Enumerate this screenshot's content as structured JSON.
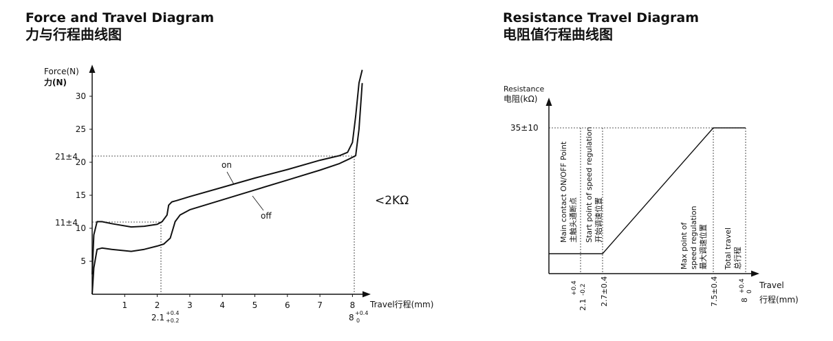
{
  "left": {
    "title_en": "Force and  Travel Diagram",
    "title_cn": "力与行程曲线图",
    "y_label_en": "Force(N)",
    "y_label_cn": "力(N)",
    "x_label": "Travel行程(mm)",
    "y_ticks": [
      "5",
      "10",
      "15",
      "20",
      "25",
      "30"
    ],
    "x_ticks": [
      "1",
      "2",
      "3",
      "4",
      "5",
      "6",
      "7",
      "8"
    ],
    "ref_21": "21±4",
    "ref_11": "11±4",
    "x_21_base": "2.1",
    "x_21_sup": "+0.4",
    "x_21_sub": "+0.2",
    "x_8_base": "8",
    "x_8_sup": "+0.4",
    "x_8_sub": "0",
    "on_label": "on",
    "off_label": "off",
    "resistance_note": "<2KΩ"
  },
  "right": {
    "title_en": "Resistance Travel Diagram",
    "title_cn": "电阻值行程曲线图",
    "y_label_en": "Resistance",
    "y_label_cn": "电阻(kΩ)",
    "y_ref": "35±10",
    "x_label_en": "Travel",
    "x_label_cn": "行程(mm)",
    "annot_main_en": "Main contact ON/OFF Point",
    "annot_main_cn": "主触头通断点",
    "annot_start_en": "Start point of speed regulation",
    "annot_start_cn": "开始调速位置",
    "annot_max_en1": "Max point of",
    "annot_max_en2": "speed regulation",
    "annot_max_cn": "最大调速位置",
    "annot_total_en": "Total travel",
    "annot_total_cn": "总行程",
    "xt1_base": "2.1",
    "xt1_sup": "+0.4",
    "xt1_sub": "-0.2",
    "xt2": "2.7±0.4",
    "xt3": "7.5±0.4",
    "xt4_base": "8",
    "xt4_sup": "+0.4",
    "xt4_sub": "0"
  },
  "chart_data": [
    {
      "type": "line",
      "title": "Force and  Travel Diagram",
      "xlabel": "Travel行程(mm)",
      "ylabel": "Force(N)",
      "xlim": [
        0,
        8.4
      ],
      "ylim": [
        0,
        35
      ],
      "series": [
        {
          "name": "on",
          "x": [
            0,
            0.05,
            0.15,
            0.3,
            0.6,
            1.2,
            1.6,
            2.0,
            2.15,
            2.3,
            2.35,
            2.45,
            2.6,
            3.0,
            4.0,
            5.0,
            6.0,
            7.0,
            7.6,
            7.85,
            8.0,
            8.1,
            8.2,
            8.3
          ],
          "y": [
            3,
            9,
            11,
            11,
            10.7,
            10.2,
            10.3,
            10.6,
            11,
            12,
            13.5,
            14,
            14.2,
            14.8,
            16.2,
            17.6,
            18.9,
            20.3,
            21,
            21.5,
            23,
            27,
            32,
            34
          ]
        },
        {
          "name": "off",
          "x": [
            0,
            0.05,
            0.15,
            0.3,
            0.6,
            1.2,
            1.6,
            2.0,
            2.2,
            2.4,
            2.55,
            2.7,
            3.0,
            4.0,
            5.0,
            6.0,
            7.0,
            7.6,
            7.9,
            8.1,
            8.2,
            8.3
          ],
          "y": [
            0,
            4,
            6.8,
            7,
            6.8,
            6.5,
            6.8,
            7.3,
            7.6,
            8.5,
            11,
            12,
            12.8,
            14.3,
            15.8,
            17.3,
            18.8,
            19.8,
            20.5,
            21,
            25,
            32
          ]
        }
      ],
      "reference_lines": [
        {
          "label": "21±4",
          "y": 21,
          "x_end": 8
        },
        {
          "label": "11±4",
          "y": 11,
          "x_end": 2.1
        },
        {
          "label": "2.1",
          "x": 2.1
        },
        {
          "label": "8",
          "x": 8
        }
      ],
      "grid": false
    },
    {
      "type": "line",
      "title": "Resistance Travel Diagram",
      "xlabel": "Travel",
      "ylabel": "Resistance",
      "series": [
        {
          "x": [
            0,
            2.7,
            7.5,
            8
          ],
          "y": [
            0,
            0,
            35,
            35
          ]
        }
      ],
      "x_ticks": [
        "2.1",
        "2.7±0.4",
        "7.5±0.4",
        "8"
      ],
      "y_ticks": [
        "35±10"
      ],
      "grid": false
    }
  ]
}
